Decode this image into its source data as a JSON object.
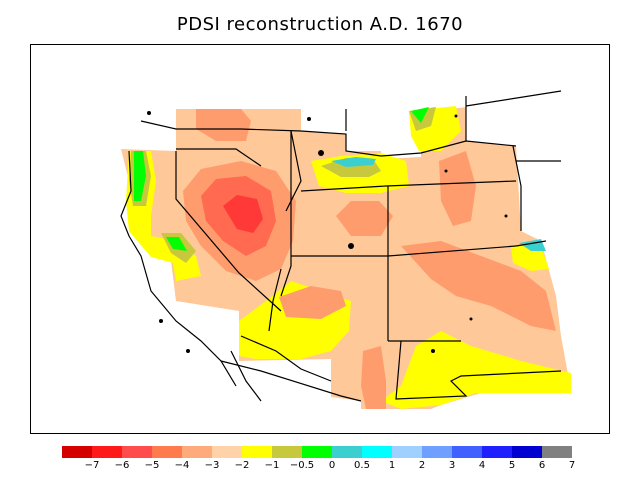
{
  "title": "PDSI reconstruction A.D. 1670",
  "legend": {
    "colors": [
      "#d40000",
      "#ff1a1a",
      "#ff4d4d",
      "#ff7a4d",
      "#ffaa7a",
      "#ffd2a8",
      "#ffff00",
      "#c8c83c",
      "#00ff00",
      "#3ccfcf",
      "#00ffff",
      "#a0d0ff",
      "#6f9fff",
      "#4060ff",
      "#2020ff",
      "#0000d0",
      "#808080"
    ],
    "labels": [
      "−7",
      "−6",
      "−5",
      "−4",
      "−3",
      "−2",
      "−1",
      "−0.5",
      "0",
      "0.5",
      "1",
      "2",
      "3",
      "4",
      "5",
      "6",
      "7"
    ]
  },
  "colors": {
    "pale_dry": "#ffc898",
    "moderate_dry": "#ff9c6e",
    "severe_dry": "#ff6a50",
    "extreme_dry": "#ff3838",
    "near_normal": "#ffff00",
    "olive": "#c8c83c",
    "green": "#00ff00",
    "teal": "#3ccfcf",
    "cyan": "#00ffff"
  }
}
